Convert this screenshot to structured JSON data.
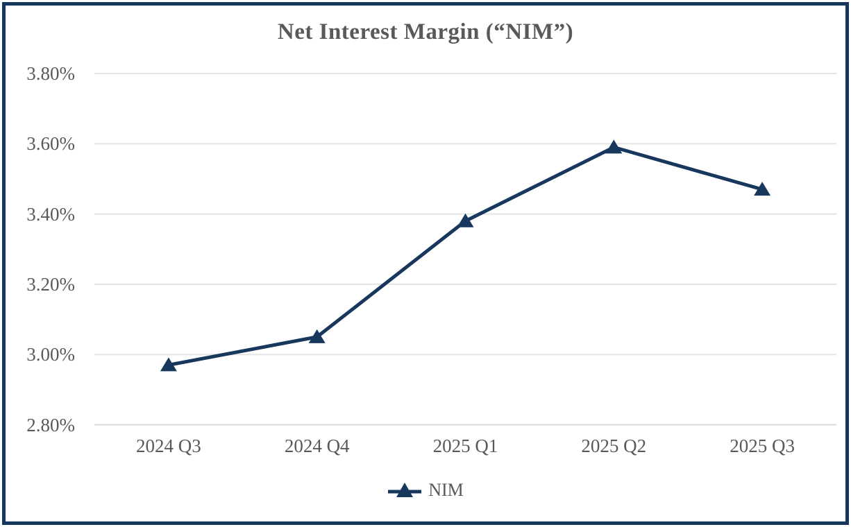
{
  "chart": {
    "title": "Net Interest Margin (“NIM”)",
    "legend": {
      "label": "NIM"
    }
  },
  "chart_data": {
    "type": "line",
    "title": "Net Interest Margin (“NIM”)",
    "categories": [
      "2024 Q3",
      "2024 Q4",
      "2025 Q1",
      "2025 Q2",
      "2025 Q3"
    ],
    "series": [
      {
        "name": "NIM",
        "values": [
          2.97,
          3.05,
          3.38,
          3.59,
          3.47
        ],
        "color": "#17375D",
        "marker": "triangle"
      }
    ],
    "xlabel": "",
    "ylabel": "",
    "ylim": [
      2.8,
      3.8
    ],
    "yticks": [
      {
        "value": 3.8,
        "label": "3.80%"
      },
      {
        "value": 3.6,
        "label": "3.60%"
      },
      {
        "value": 3.4,
        "label": "3.40%"
      },
      {
        "value": 3.2,
        "label": "3.20%"
      },
      {
        "value": 3.0,
        "label": "3.00%"
      },
      {
        "value": 2.8,
        "label": "2.80%"
      }
    ],
    "grid": true,
    "legend_position": "bottom"
  },
  "colors": {
    "line": "#17375D",
    "border": "#17375D",
    "text": "#595959",
    "gridline": "#E4E4E4",
    "axisline": "#D9D9D9",
    "background": "#FFFFFF"
  }
}
